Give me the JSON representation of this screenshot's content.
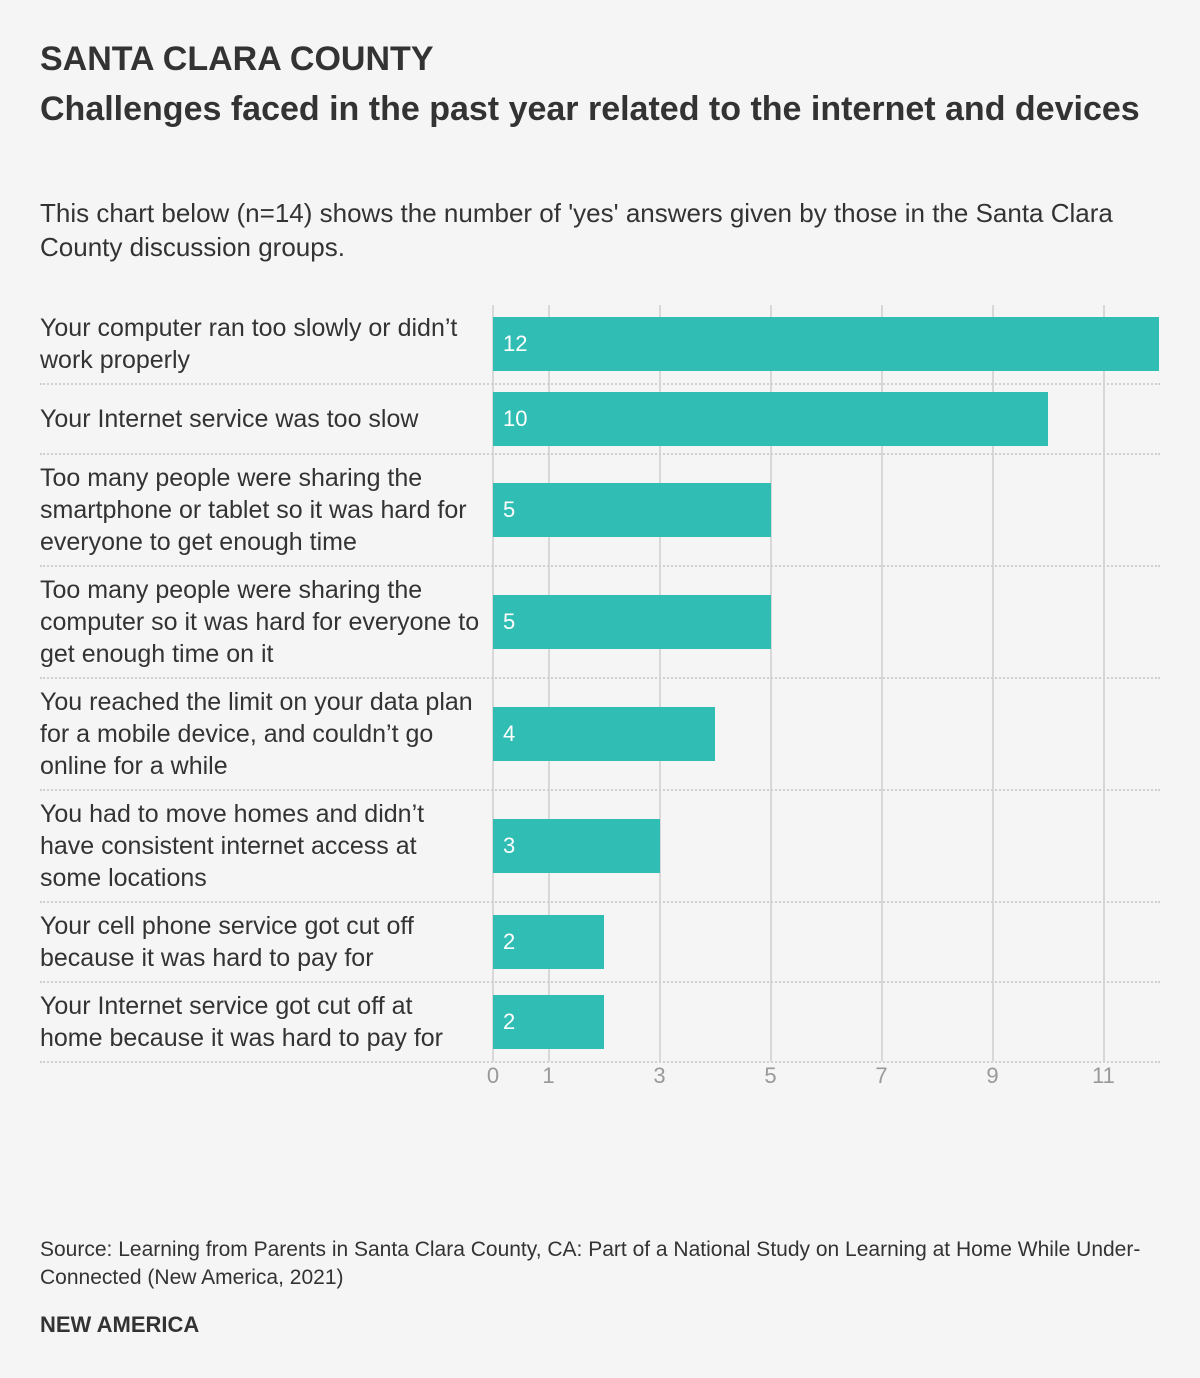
{
  "chart_data": {
    "type": "bar",
    "orientation": "horizontal",
    "title": "SANTA CLARA COUNTY",
    "subtitle": "Challenges faced in the past year related to the internet and devices",
    "description": "This chart below (n=14) shows the number of 'yes' answers given by those in the Santa Clara County discussion groups.",
    "categories": [
      "Your computer ran too slowly or didn’t work properly",
      "Your Internet service was too slow",
      "Too many people were sharing the smartphone or tablet so it was hard for everyone to get enough time",
      "Too many people were sharing the computer so it was hard for everyone to get enough time on it",
      "You reached the limit on your data plan for a mobile device, and couldn’t go online for a while",
      "You had to move homes and didn’t have consistent internet access at some locations",
      "Your cell phone service got cut off because it was hard to pay for",
      "Your Internet service got cut off at home because it was hard to pay for"
    ],
    "values": [
      12,
      10,
      5,
      5,
      4,
      3,
      2,
      2
    ],
    "color": "#30bdb3",
    "xlim": [
      0,
      12
    ],
    "xticks": [
      0,
      1,
      3,
      5,
      7,
      9,
      11
    ],
    "grid": true,
    "source": "Source: Learning from Parents in Santa Clara County, CA: Part of a National Study on Learning at Home While Under-Connected (New America, 2021)",
    "footer": "NEW AMERICA"
  }
}
